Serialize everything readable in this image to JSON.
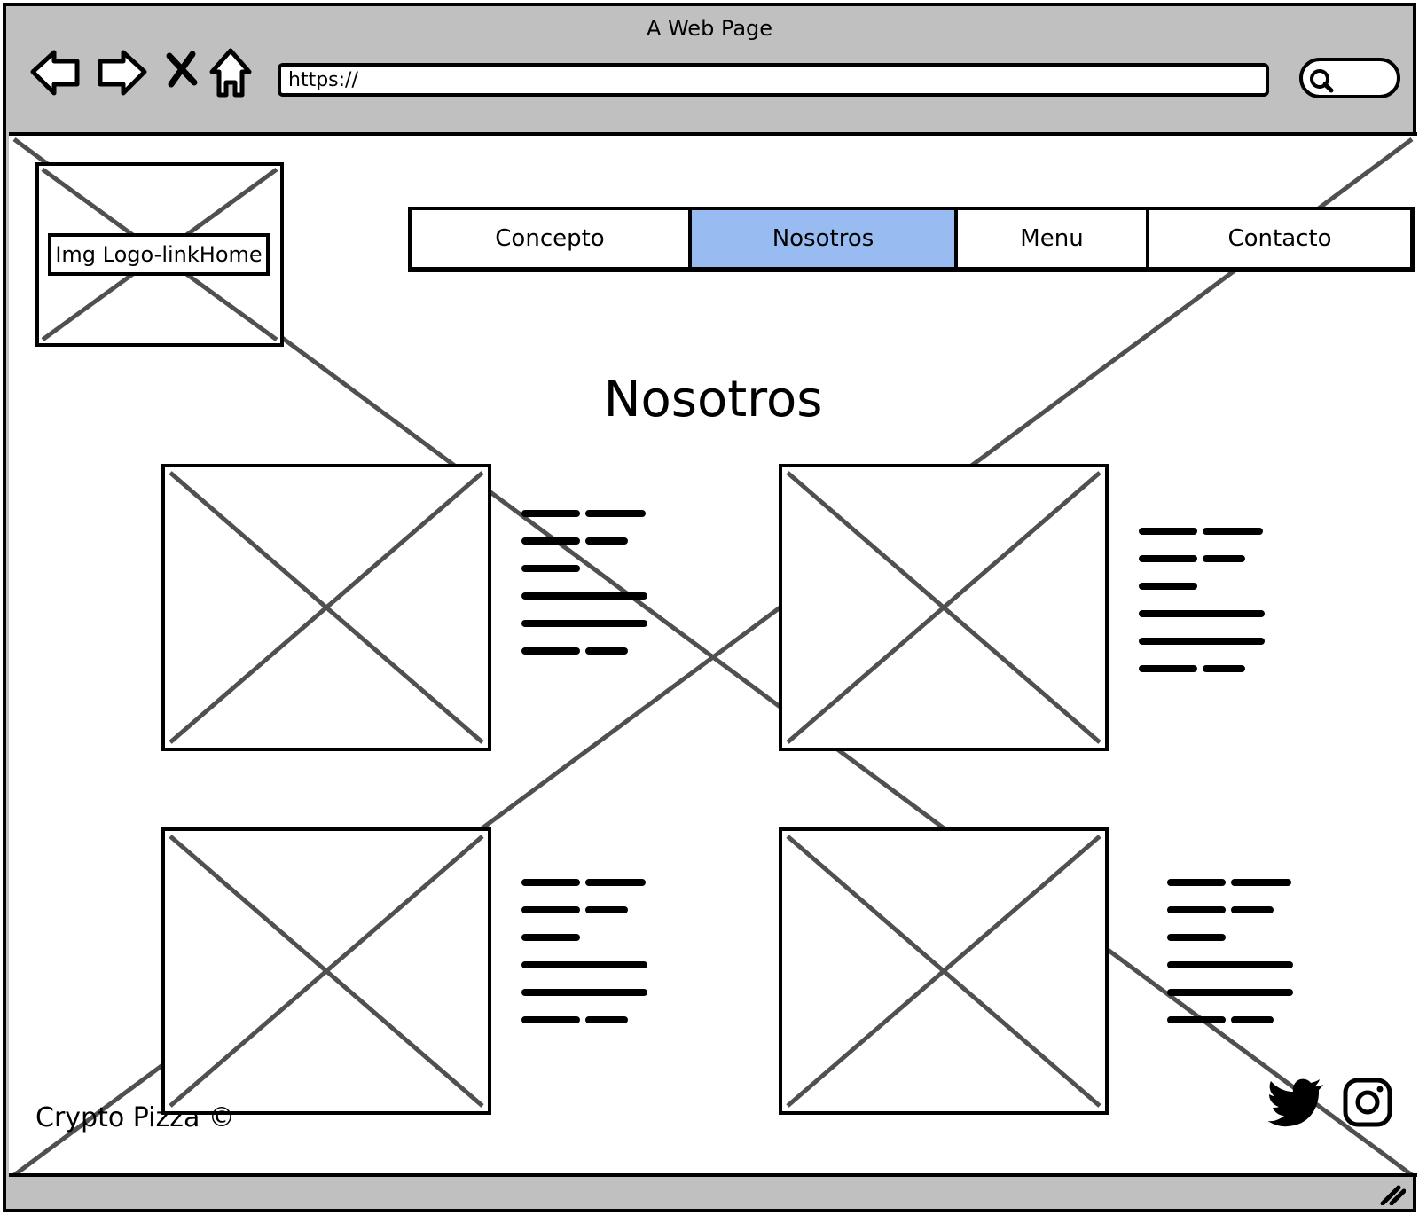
{
  "window": {
    "title": "A Web Page"
  },
  "browser": {
    "url": "https://",
    "nav_icons": [
      "back-arrow-icon",
      "forward-arrow-icon",
      "stop-x-icon",
      "home-icon"
    ],
    "search_icon": "search-icon"
  },
  "page": {
    "logo_label": "Img Logo-linkHome",
    "menu": [
      {
        "label": "Concepto",
        "active": false
      },
      {
        "label": "Nosotros",
        "active": true
      },
      {
        "label": "Menu",
        "active": false
      },
      {
        "label": "Contacto",
        "active": false
      }
    ],
    "heading": "Nosotros",
    "footer": "Crypto Pizza ©",
    "social_icons": [
      "twitter-icon",
      "instagram-icon"
    ]
  },
  "colors": {
    "active_tab": "#98bcf2",
    "chrome": "#c0c0c0",
    "placeholder_line": "#505050"
  }
}
